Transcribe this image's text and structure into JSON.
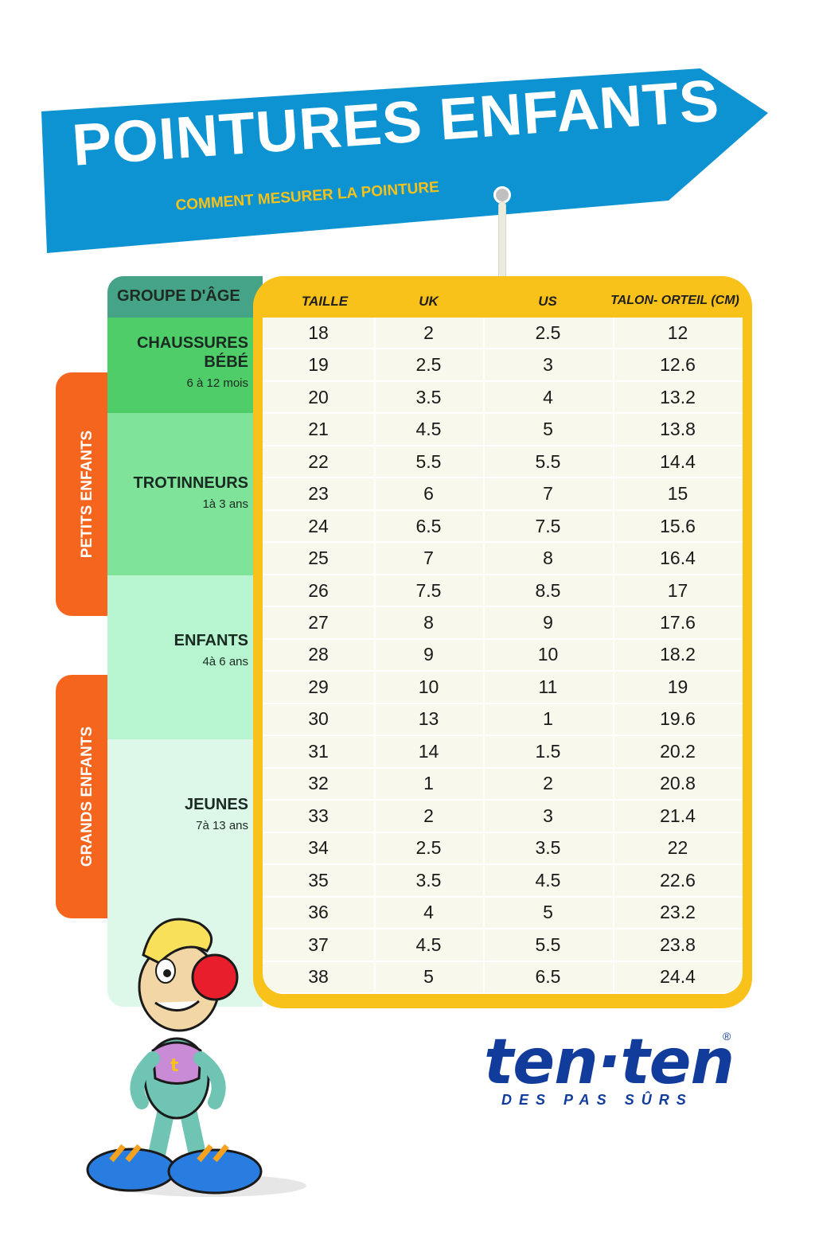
{
  "banner": {
    "title": "POINTURES ENFANTS",
    "subtitle": "COMMENT MESURER LA POINTURE"
  },
  "side_tabs": {
    "petits": "PETITS ENFANTS",
    "grands": "GRANDS ENFANTS"
  },
  "age_column": {
    "header": "GROUPE D'ÂGE",
    "groups": [
      {
        "name": "CHAUSSURES BÉBÉ",
        "range": "6 à 12 mois"
      },
      {
        "name": "TROTINNEURS",
        "range": "1à 3 ans"
      },
      {
        "name": "ENFANTS",
        "range": "4à 6 ans"
      },
      {
        "name": "JEUNES",
        "range": "7à 13 ans"
      }
    ]
  },
  "table": {
    "headers": [
      "TAILLE",
      "UK",
      "US",
      "TALON- ORTEIL (CM)"
    ],
    "rows": [
      [
        "18",
        "2",
        "2.5",
        "12"
      ],
      [
        "19",
        "2.5",
        "3",
        "12.6"
      ],
      [
        "20",
        "3.5",
        "4",
        "13.2"
      ],
      [
        "21",
        "4.5",
        "5",
        "13.8"
      ],
      [
        "22",
        "5.5",
        "5.5",
        "14.4"
      ],
      [
        "23",
        "6",
        "7",
        "15"
      ],
      [
        "24",
        "6.5",
        "7.5",
        "15.6"
      ],
      [
        "25",
        "7",
        "8",
        "16.4"
      ],
      [
        "26",
        "7.5",
        "8.5",
        "17"
      ],
      [
        "27",
        "8",
        "9",
        "17.6"
      ],
      [
        "28",
        "9",
        "10",
        "18.2"
      ],
      [
        "29",
        "10",
        "11",
        "19"
      ],
      [
        "30",
        "13",
        "1",
        "19.6"
      ],
      [
        "31",
        "14",
        "1.5",
        "20.2"
      ],
      [
        "32",
        "1",
        "2",
        "20.8"
      ],
      [
        "33",
        "2",
        "3",
        "21.4"
      ],
      [
        "34",
        "2.5",
        "3.5",
        "22"
      ],
      [
        "35",
        "3.5",
        "4.5",
        "22.6"
      ],
      [
        "36",
        "4",
        "5",
        "23.2"
      ],
      [
        "37",
        "4.5",
        "5.5",
        "23.8"
      ],
      [
        "38",
        "5",
        "6.5",
        "24.4"
      ]
    ]
  },
  "logo": {
    "brand": "ten·ten",
    "registered": "®",
    "tagline": "DES PAS SÛRS"
  },
  "colors": {
    "banner_blue": "#0d93d1",
    "tab_orange": "#f6651e",
    "table_yellow": "#f9c21b",
    "header_green": "#45a387",
    "bebe_green": "#4fcd68",
    "trot_green": "#7fe39a",
    "enfants_green": "#b6f5cf",
    "jeunes_green": "#ddf8e9",
    "logo_blue": "#123c9c"
  },
  "icons": {
    "mascot": "cartoon-mascot-icon",
    "hang_tag": "tag-hole-icon"
  }
}
